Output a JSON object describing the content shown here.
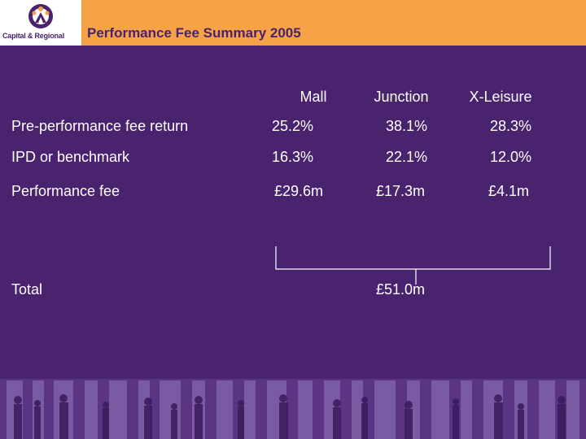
{
  "logo": {
    "text": "Capital & Regional"
  },
  "title": "Performance Fee Summary 2005",
  "columns": [
    "Mall",
    "Junction",
    "X-Leisure"
  ],
  "rows": [
    {
      "label": "Pre-performance fee return",
      "values": [
        "25.2%",
        "38.1%",
        "28.3%"
      ]
    },
    {
      "label": "IPD or benchmark",
      "values": [
        "16.3%",
        "22.1%",
        "12.0%"
      ]
    },
    {
      "label": "Performance fee",
      "values": [
        "£29.6m",
        "£17.3m",
        "£4.1m"
      ]
    }
  ],
  "total": {
    "label": "Total",
    "value": "£51.0m"
  },
  "colors": {
    "background": "#4a236e",
    "header": "#f6a247",
    "title": "#4a236e"
  }
}
